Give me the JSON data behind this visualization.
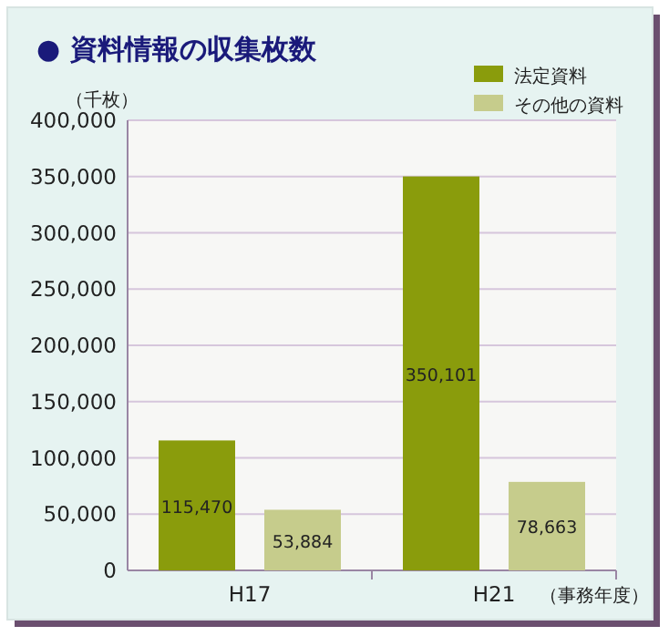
{
  "chart_data": {
    "type": "bar",
    "title": "● 資料情報の収集枚数",
    "ylabel": "（千枚）",
    "xlabel": "（事務年度）",
    "categories": [
      "H17",
      "H21"
    ],
    "series": [
      {
        "name": "法定資料",
        "color": "#8a9c0c",
        "values": [
          115470,
          350101
        ],
        "value_labels": [
          "115,470",
          "350,101"
        ]
      },
      {
        "name": "その他の資料",
        "color": "#c6cc8c",
        "values": [
          53884,
          78663
        ],
        "value_labels": [
          "53,884",
          "78,663"
        ]
      }
    ],
    "ylim": [
      0,
      400000
    ],
    "yticks": [
      {
        "value": 0,
        "label": "0"
      },
      {
        "value": 50000,
        "label": "50,000"
      },
      {
        "value": 100000,
        "label": "100,000"
      },
      {
        "value": 150000,
        "label": "150,000"
      },
      {
        "value": 200000,
        "label": "200,000"
      },
      {
        "value": 250000,
        "label": "250,000"
      },
      {
        "value": 300000,
        "label": "300,000"
      },
      {
        "value": 350000,
        "label": "350,000"
      },
      {
        "value": 400000,
        "label": "400,000"
      }
    ],
    "grid": "y",
    "legend": "top right"
  }
}
